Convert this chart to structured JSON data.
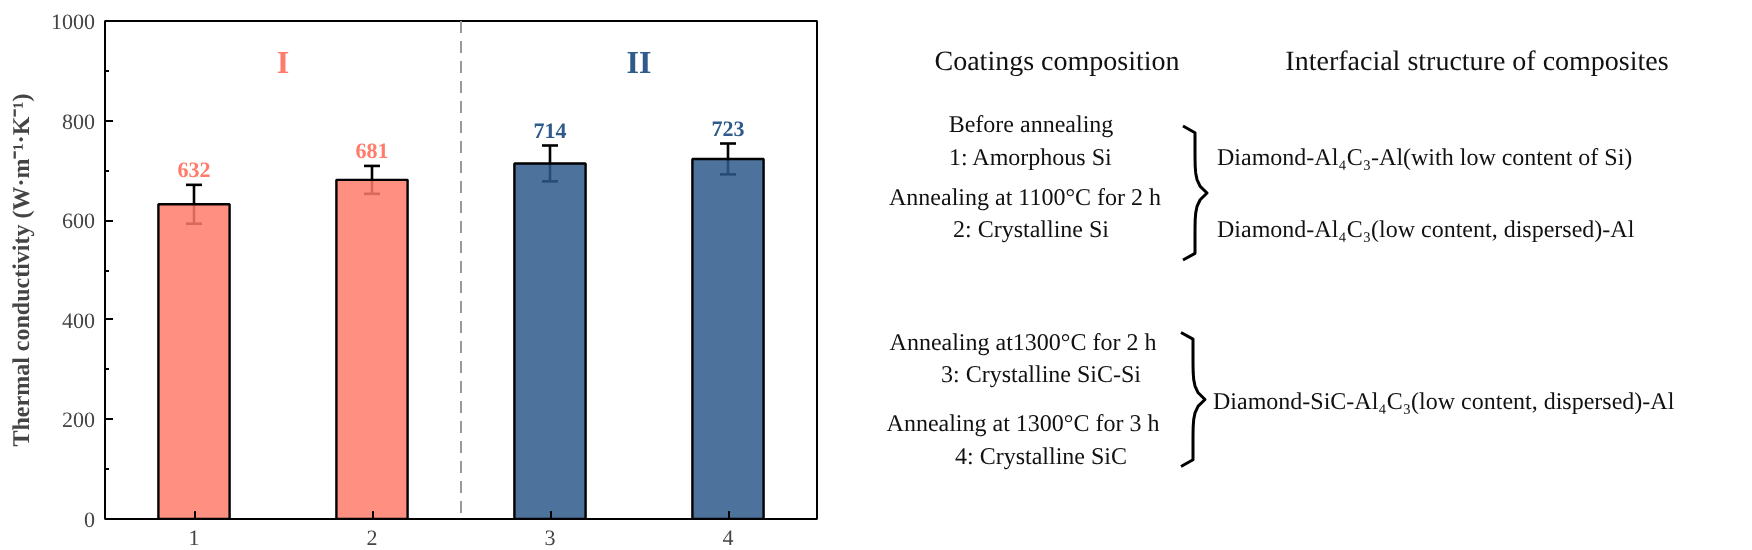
{
  "chart_data": {
    "type": "bar",
    "ylabel": "Thermal conductivity (W·m⁻¹·K⁻¹)",
    "categories": [
      "1",
      "2",
      "3",
      "4"
    ],
    "values": [
      632,
      681,
      714,
      723
    ],
    "errors": [
      39,
      28,
      36,
      31
    ],
    "colors": [
      "#ff7b6b",
      "#ff7b6b",
      "#2e5a8c",
      "#2e5a8c"
    ],
    "data_labels": true,
    "ylim": [
      0,
      1000
    ],
    "yticks": [
      0,
      200,
      400,
      600,
      800,
      1000
    ],
    "grid": false,
    "annotations": [
      "I",
      "II",
      "Coatings composition",
      "Interfacial structure of composites",
      "Before annealing",
      "1: Amorphous Si",
      "Annealing at 1100°C for 2 h",
      "2: Crystalline Si",
      "Diamond-Al₄C₃-Al(with low content of Si)",
      "Diamond-Al₄C₃(low content, dispersed)-Al",
      "Annealing at1300°C for 2 h",
      "3: Crystalline SiC-Si",
      "Annealing at 1300°C for 3 h",
      "4: Crystalline SiC",
      "Diamond-SiC-Al₄C₃(low content, dispersed)-Al"
    ]
  }
}
